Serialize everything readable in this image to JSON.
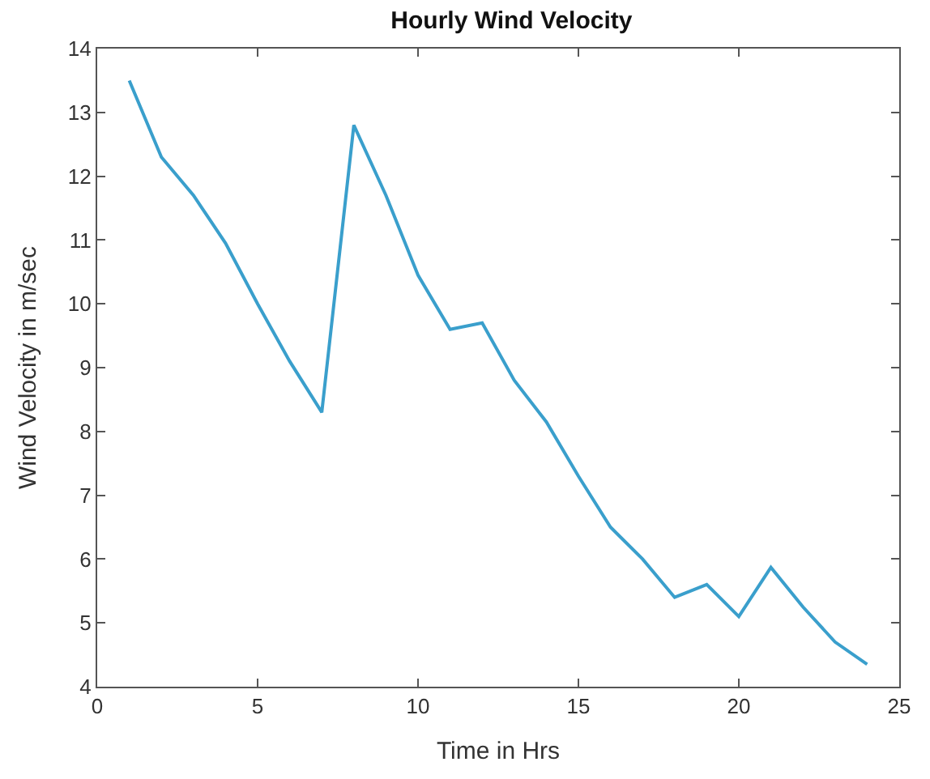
{
  "chart_data": {
    "type": "line",
    "title": "Hourly Wind Velocity",
    "xlabel": "Time in Hrs",
    "ylabel": "Wind Velocity in m/sec",
    "x": [
      1,
      2,
      3,
      4,
      5,
      6,
      7,
      8,
      9,
      10,
      11,
      12,
      13,
      14,
      15,
      16,
      17,
      18,
      19,
      20,
      21,
      22,
      23,
      24
    ],
    "series": [
      {
        "color": "#3a9fcc",
        "values": [
          13.5,
          12.3,
          11.7,
          10.95,
          10.0,
          9.1,
          8.3,
          12.8,
          11.7,
          10.45,
          9.6,
          9.7,
          8.8,
          8.15,
          7.3,
          6.5,
          6.0,
          5.4,
          5.6,
          5.1,
          5.87,
          5.25,
          4.7,
          4.35
        ]
      }
    ],
    "xlim": [
      0,
      25
    ],
    "xticks": [
      0,
      5,
      10,
      15,
      20,
      25
    ],
    "ylim": [
      4,
      14
    ],
    "yticks": [
      4,
      5,
      6,
      7,
      8,
      9,
      10,
      11,
      12,
      13,
      14
    ],
    "grid": false,
    "marker": "none",
    "line_style": "solid"
  }
}
